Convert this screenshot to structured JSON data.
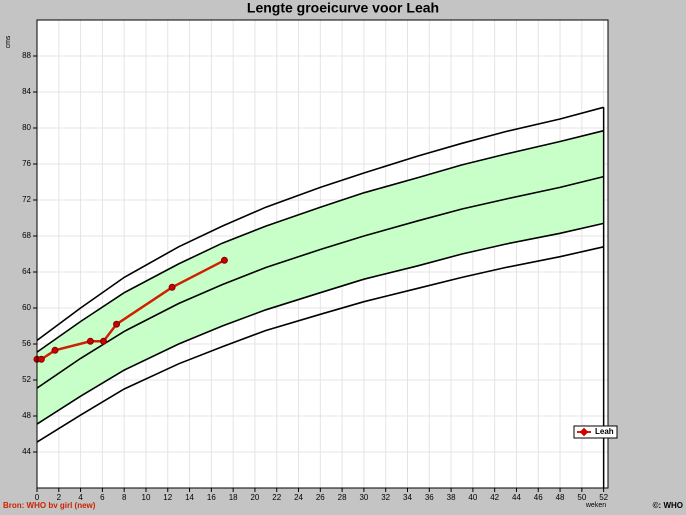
{
  "chart_data": {
    "type": "line",
    "title": "Lengte groeicurve voor Leah",
    "y_label": "cms",
    "x_label": "weken",
    "source": "Bron: WHO bv girl (new)",
    "copyright": "©: WHO",
    "xlim": [
      0,
      52.4
    ],
    "ylim": [
      40,
      92
    ],
    "xticks": [
      0,
      2,
      4,
      6,
      8,
      10,
      12,
      14,
      16,
      18,
      20,
      22,
      24,
      26,
      28,
      30,
      32,
      34,
      36,
      38,
      40,
      42,
      44,
      46,
      48,
      50,
      52
    ],
    "yticks": [
      44,
      48,
      52,
      56,
      60,
      64,
      68,
      72,
      76,
      80,
      84,
      88
    ],
    "grid": true,
    "band_color": "#c8ffc8",
    "legend": "lower right",
    "series": [
      {
        "color": "#000000",
        "x": [
          0,
          4,
          8,
          13,
          17,
          21,
          26,
          30,
          35,
          39,
          43,
          48,
          52
        ],
        "values": [
          56.4,
          60.0,
          63.4,
          66.8,
          69.1,
          71.2,
          73.4,
          75.0,
          76.9,
          78.3,
          79.6,
          81.0,
          82.3
        ]
      },
      {
        "color": "#000000",
        "x": [
          0,
          4,
          8,
          13,
          17,
          21,
          26,
          30,
          35,
          39,
          43,
          48,
          52
        ],
        "values": [
          55.1,
          58.5,
          61.7,
          64.9,
          67.2,
          69.1,
          71.2,
          72.8,
          74.5,
          75.9,
          77.1,
          78.5,
          79.7
        ]
      },
      {
        "color": "#000000",
        "x": [
          0,
          4,
          8,
          13,
          17,
          21,
          26,
          30,
          35,
          39,
          43,
          48,
          52
        ],
        "values": [
          51.1,
          54.4,
          57.4,
          60.5,
          62.6,
          64.5,
          66.5,
          68.0,
          69.7,
          71.0,
          72.1,
          73.4,
          74.6
        ]
      },
      {
        "color": "#000000",
        "x": [
          0,
          4,
          8,
          13,
          17,
          21,
          26,
          30,
          35,
          39,
          43,
          48,
          52
        ],
        "values": [
          47.1,
          50.2,
          53.1,
          56.0,
          58.0,
          59.8,
          61.7,
          63.2,
          64.7,
          66.0,
          67.1,
          68.3,
          69.4
        ]
      },
      {
        "color": "#000000",
        "x": [
          0,
          4,
          8,
          13,
          17,
          21,
          26,
          30,
          35,
          39,
          43,
          48,
          52
        ],
        "values": [
          45.1,
          48.1,
          51.0,
          53.8,
          55.7,
          57.5,
          59.3,
          60.7,
          62.2,
          63.4,
          64.5,
          65.7,
          66.8
        ]
      },
      {
        "name": "Leah",
        "color": "#cc2200",
        "marker_color": "#cc0000",
        "x": [
          0,
          0.4,
          1.65,
          4.9,
          6.1,
          7.3,
          12.4,
          17.2
        ],
        "values": [
          54.3,
          54.3,
          55.3,
          56.3,
          56.3,
          58.2,
          62.3,
          65.3
        ]
      }
    ]
  }
}
